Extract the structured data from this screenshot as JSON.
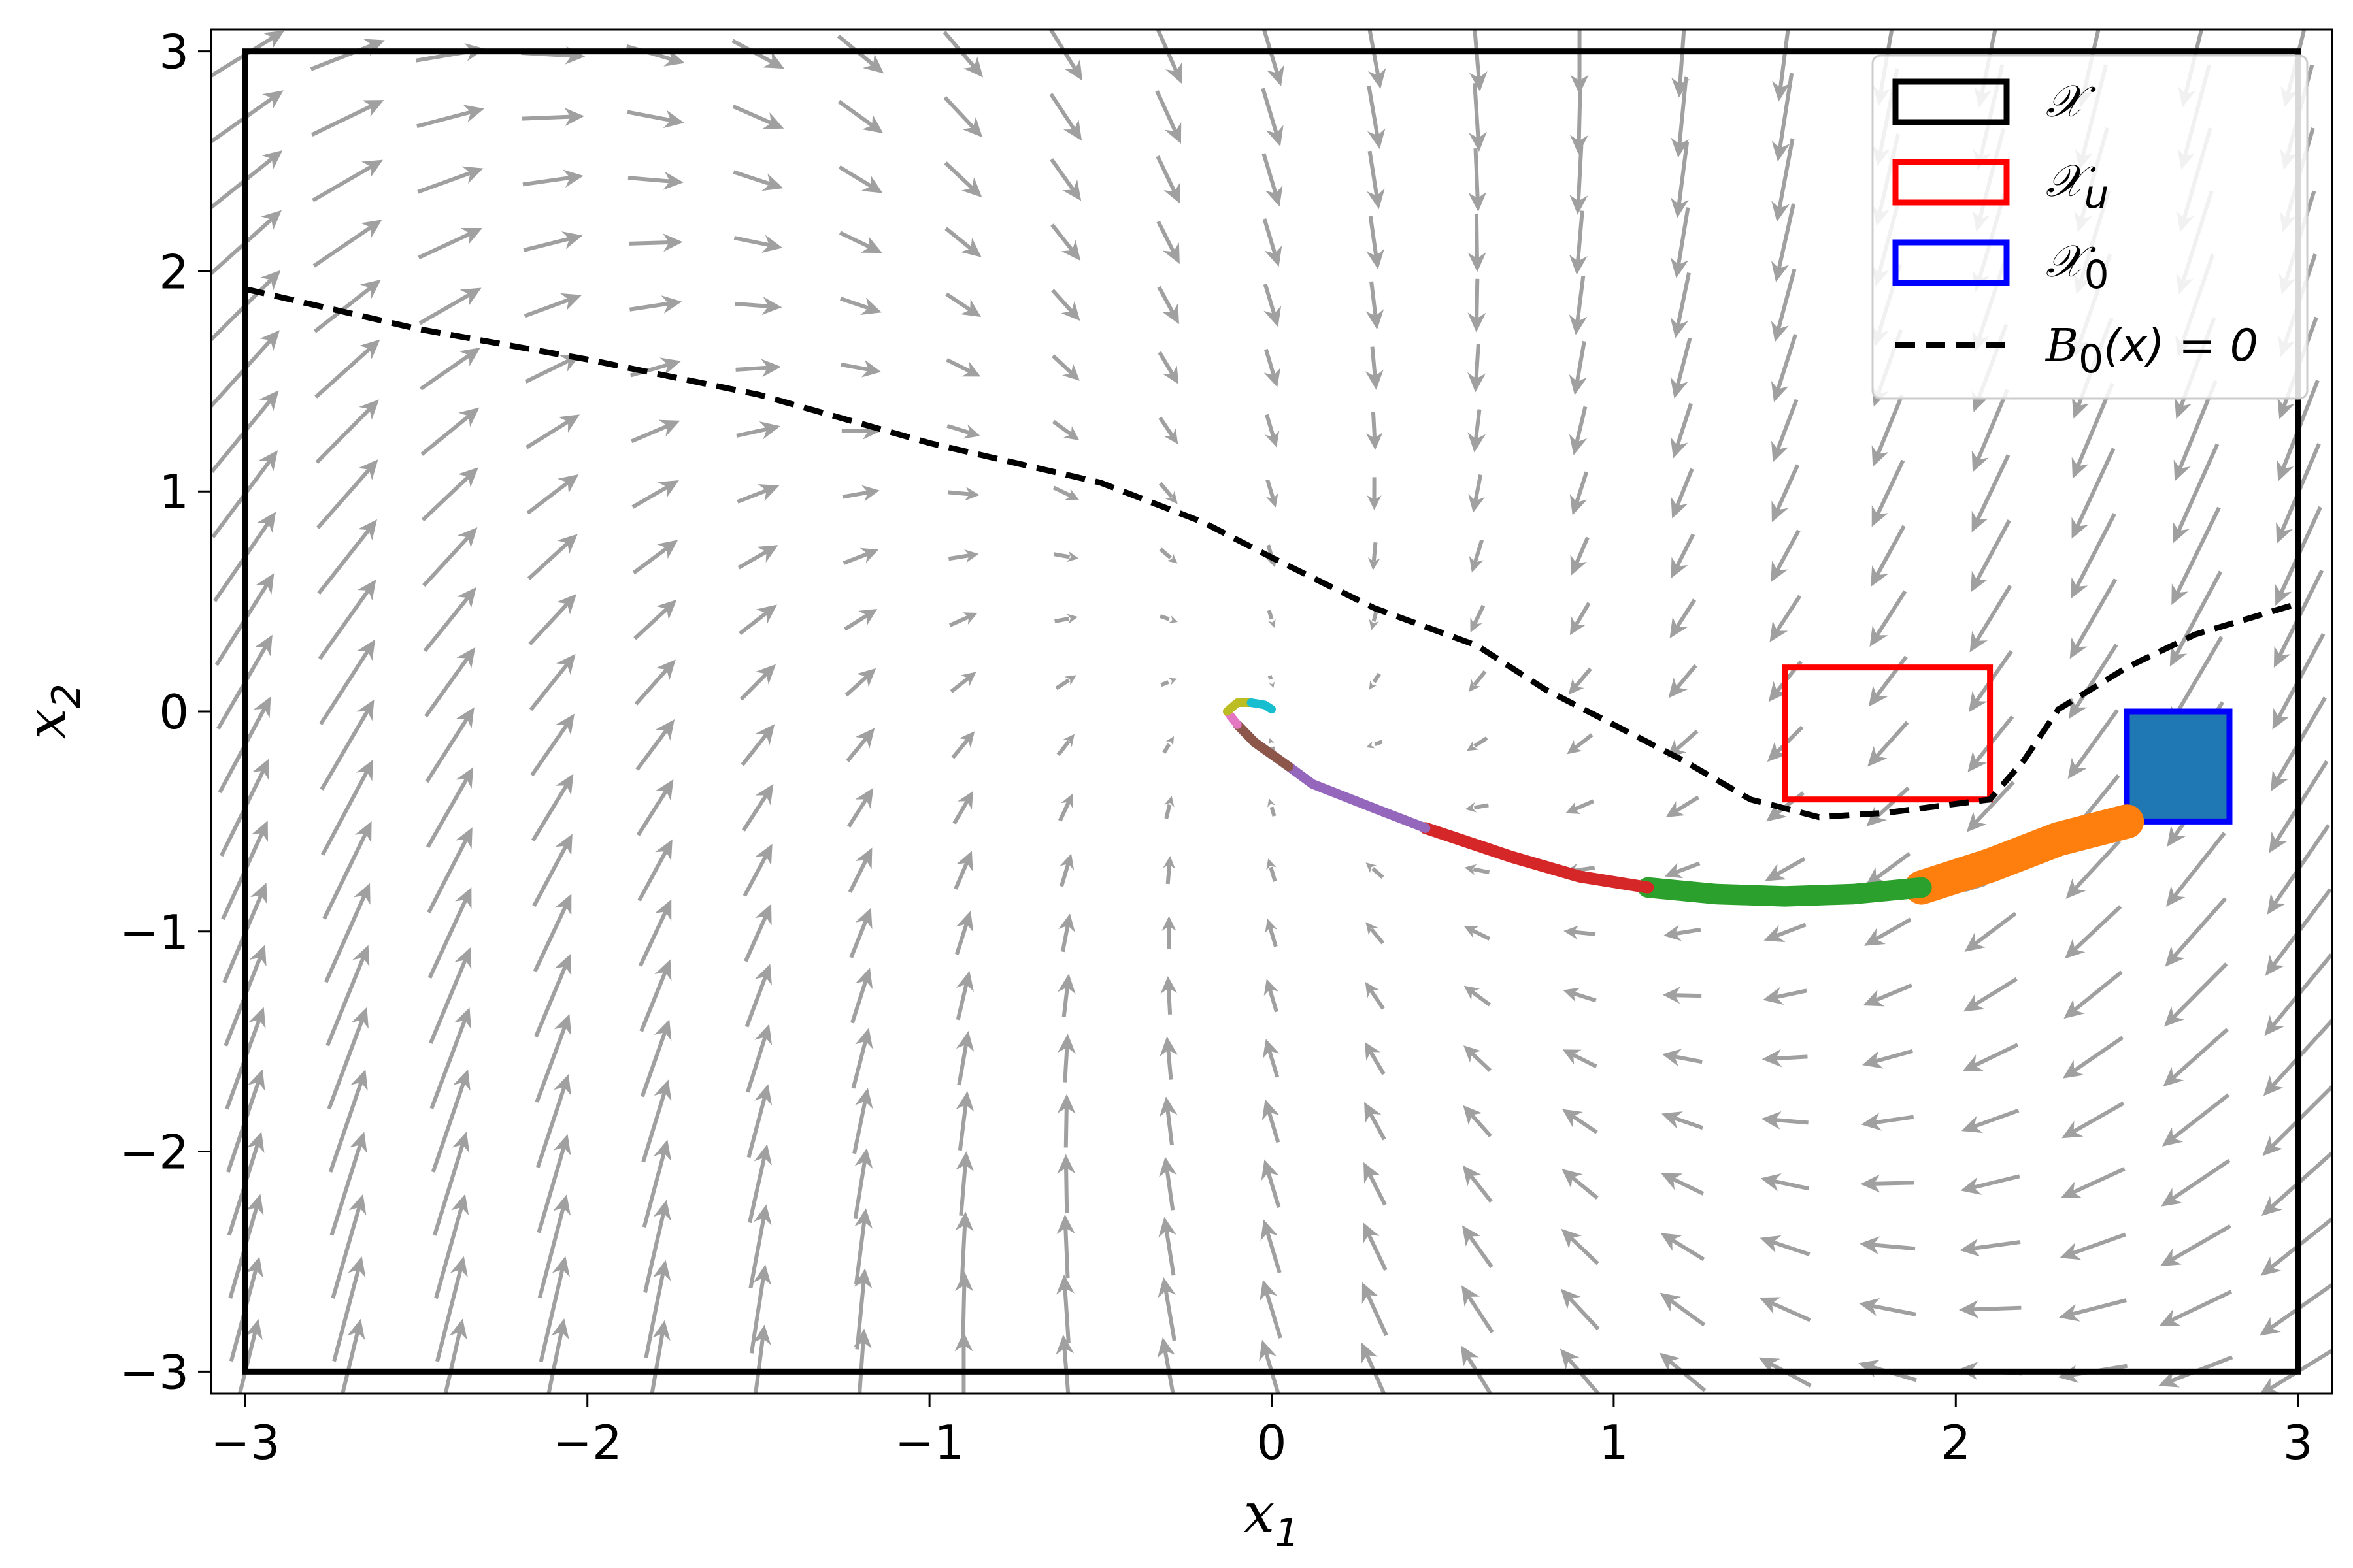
{
  "chart_data": {
    "type": "scatter",
    "title": "",
    "xlabel": "x",
    "xlabel_sub": "1",
    "ylabel": "x",
    "ylabel_sub": "2",
    "xlim": [
      -3.1,
      3.1
    ],
    "ylim": [
      -3.1,
      3.1
    ],
    "xticks": [
      -3,
      -2,
      -1,
      0,
      1,
      2,
      3
    ],
    "yticks": [
      -3,
      -2,
      -1,
      0,
      1,
      2,
      3
    ],
    "xtick_labels": [
      "−3",
      "−2",
      "−1",
      "0",
      "1",
      "2",
      "3"
    ],
    "ytick_labels": [
      "−3",
      "−2",
      "−1",
      "0",
      "1",
      "2",
      "3"
    ],
    "grid": false,
    "legend_position": "top-right",
    "regions": {
      "domain": {
        "label": "𝒳",
        "x": [
          -3,
          3
        ],
        "y": [
          -3,
          3
        ],
        "color": "#000000"
      },
      "unsafe": {
        "label": "𝒳",
        "label_sub": "u",
        "x": [
          1.5,
          2.1
        ],
        "y": [
          -0.4,
          0.2
        ],
        "color": "#ff0000"
      },
      "initial": {
        "label": "𝒳",
        "label_sub": "0",
        "x": [
          2.5,
          2.8
        ],
        "y": [
          -0.5,
          0.0
        ],
        "color": "#0000ff",
        "fill": "#1f77b4"
      }
    },
    "barrier_contour": {
      "label": "B",
      "label_sub": "0",
      "label_rest": "(x) = 0",
      "color": "#000000",
      "points": [
        [
          -3.0,
          1.92
        ],
        [
          -2.5,
          1.74
        ],
        [
          -2.0,
          1.6
        ],
        [
          -1.5,
          1.44
        ],
        [
          -1.0,
          1.22
        ],
        [
          -0.5,
          1.04
        ],
        [
          -0.2,
          0.86
        ],
        [
          0.0,
          0.7
        ],
        [
          0.3,
          0.47
        ],
        [
          0.6,
          0.3
        ],
        [
          0.8,
          0.1
        ],
        [
          1.0,
          -0.06
        ],
        [
          1.2,
          -0.22
        ],
        [
          1.4,
          -0.4
        ],
        [
          1.6,
          -0.48
        ],
        [
          1.8,
          -0.46
        ],
        [
          2.1,
          -0.4
        ],
        [
          2.2,
          -0.22
        ],
        [
          2.3,
          0.01
        ],
        [
          2.5,
          0.2
        ],
        [
          2.7,
          0.35
        ],
        [
          3.0,
          0.49
        ]
      ]
    },
    "trajectory_segments": [
      {
        "color": "#ff7f0e",
        "width": 0.1,
        "points": [
          [
            2.5,
            -0.5
          ],
          [
            2.3,
            -0.58
          ],
          [
            2.1,
            -0.7
          ],
          [
            1.9,
            -0.8
          ]
        ]
      },
      {
        "color": "#2ca02c",
        "width": 0.06,
        "points": [
          [
            1.9,
            -0.8
          ],
          [
            1.7,
            -0.83
          ],
          [
            1.5,
            -0.84
          ],
          [
            1.3,
            -0.83
          ],
          [
            1.1,
            -0.8
          ]
        ]
      },
      {
        "color": "#d62728",
        "width": 0.035,
        "points": [
          [
            1.1,
            -0.8
          ],
          [
            0.9,
            -0.75
          ],
          [
            0.7,
            -0.66
          ],
          [
            0.45,
            -0.53
          ]
        ]
      },
      {
        "color": "#9467bd",
        "width": 0.028,
        "points": [
          [
            0.45,
            -0.53
          ],
          [
            0.3,
            -0.44
          ],
          [
            0.12,
            -0.33
          ],
          [
            0.05,
            -0.25
          ]
        ]
      },
      {
        "color": "#8c564b",
        "width": 0.028,
        "points": [
          [
            0.05,
            -0.25
          ],
          [
            -0.05,
            -0.14
          ],
          [
            -0.1,
            -0.06
          ]
        ]
      },
      {
        "color": "#e377c2",
        "width": 0.025,
        "points": [
          [
            -0.1,
            -0.06
          ],
          [
            -0.13,
            0.0
          ]
        ]
      },
      {
        "color": "#bcbd22",
        "width": 0.025,
        "points": [
          [
            -0.13,
            0.0
          ],
          [
            -0.1,
            0.04
          ],
          [
            -0.06,
            0.04
          ]
        ]
      },
      {
        "color": "#17becf",
        "width": 0.025,
        "points": [
          [
            -0.06,
            0.04
          ],
          [
            -0.02,
            0.03
          ],
          [
            0.0,
            0.01
          ]
        ]
      }
    ],
    "vector_field": {
      "color": "#a0a0a0",
      "grid_x": [
        -3.0,
        3.0,
        0.3
      ],
      "grid_y": [
        -3.0,
        3.0,
        0.285
      ]
    }
  }
}
